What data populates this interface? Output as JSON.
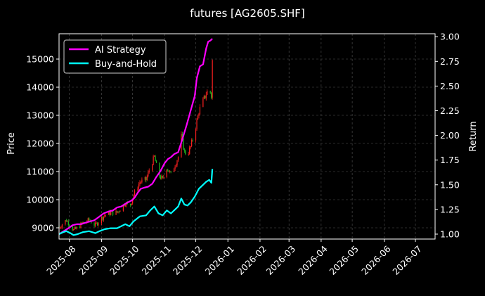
{
  "chart_data": {
    "type": "line",
    "title": "futures [AG2605.SHF]",
    "ylabel": "Price",
    "y2label": "Return",
    "x_range": [
      "2025-07-22",
      "2026-07-20"
    ],
    "ylim": [
      8600,
      15900
    ],
    "y2lim": [
      0.95,
      3.03
    ],
    "x_ticks": [
      "2025-08",
      "2025-09",
      "2025-10",
      "2025-11",
      "2025-12",
      "2026-01",
      "2026-02",
      "2026-03",
      "2026-04",
      "2026-05",
      "2026-06",
      "2026-07"
    ],
    "y_ticks": [
      9000,
      10000,
      11000,
      12000,
      13000,
      14000,
      15000
    ],
    "y2_ticks": [
      "1.00",
      "1.25",
      "1.50",
      "1.75",
      "2.00",
      "2.25",
      "2.50",
      "2.75",
      "3.00"
    ],
    "grid": true,
    "legend_position": "top-left",
    "background": "#000000",
    "colors": {
      "ai": "#ff00ff",
      "bh": "#00ffff",
      "up": "#ff2020",
      "down": "#20c020",
      "grid": "#555555",
      "text": "#ffffff"
    },
    "series": [
      {
        "name": "AI Strategy",
        "axis": "right",
        "x": [
          "2025-07-22",
          "2025-07-25",
          "2025-07-28",
          "2025-07-31",
          "2025-08-04",
          "2025-08-08",
          "2025-08-12",
          "2025-08-18",
          "2025-08-25",
          "2025-08-29",
          "2025-09-03",
          "2025-09-08",
          "2025-09-12",
          "2025-09-16",
          "2025-09-20",
          "2025-09-26",
          "2025-09-30",
          "2025-10-03",
          "2025-10-06",
          "2025-10-09",
          "2025-10-12",
          "2025-10-16",
          "2025-10-20",
          "2025-10-24",
          "2025-10-28",
          "2025-11-01",
          "2025-11-04",
          "2025-11-07",
          "2025-11-10",
          "2025-11-14",
          "2025-11-18",
          "2025-11-22",
          "2025-11-26",
          "2025-11-30",
          "2025-12-02",
          "2025-12-05",
          "2025-12-08",
          "2025-12-11",
          "2025-12-13",
          "2025-12-15",
          "2025-12-17"
        ],
        "values": [
          1.0,
          1.02,
          1.04,
          1.06,
          1.09,
          1.1,
          1.1,
          1.12,
          1.14,
          1.17,
          1.21,
          1.23,
          1.24,
          1.27,
          1.28,
          1.32,
          1.34,
          1.37,
          1.42,
          1.46,
          1.47,
          1.48,
          1.51,
          1.58,
          1.64,
          1.72,
          1.76,
          1.78,
          1.81,
          1.83,
          1.96,
          2.1,
          2.25,
          2.4,
          2.58,
          2.7,
          2.72,
          2.88,
          2.95,
          2.96,
          2.98
        ]
      },
      {
        "name": "Buy-and-Hold",
        "axis": "right",
        "x": [
          "2025-07-22",
          "2025-07-26",
          "2025-07-29",
          "2025-08-02",
          "2025-08-05",
          "2025-08-09",
          "2025-08-14",
          "2025-08-20",
          "2025-08-26",
          "2025-08-30",
          "2025-09-04",
          "2025-09-10",
          "2025-09-16",
          "2025-09-20",
          "2025-09-24",
          "2025-09-28",
          "2025-10-02",
          "2025-10-08",
          "2025-10-14",
          "2025-10-18",
          "2025-10-22",
          "2025-10-26",
          "2025-10-30",
          "2025-11-03",
          "2025-11-07",
          "2025-11-11",
          "2025-11-14",
          "2025-11-17",
          "2025-11-20",
          "2025-11-23",
          "2025-11-26",
          "2025-11-30",
          "2025-12-04",
          "2025-12-08",
          "2025-12-11",
          "2025-12-14",
          "2025-12-16",
          "2025-12-17"
        ],
        "values": [
          1.0,
          1.02,
          1.03,
          1.01,
          0.99,
          1.0,
          1.02,
          1.03,
          1.01,
          1.03,
          1.05,
          1.06,
          1.06,
          1.08,
          1.1,
          1.08,
          1.13,
          1.18,
          1.19,
          1.24,
          1.28,
          1.21,
          1.19,
          1.24,
          1.21,
          1.25,
          1.28,
          1.36,
          1.3,
          1.29,
          1.32,
          1.38,
          1.46,
          1.5,
          1.53,
          1.55,
          1.52,
          1.66
        ]
      }
    ]
  },
  "legend": {
    "items": [
      {
        "label": "AI Strategy"
      },
      {
        "label": "Buy-and-Hold"
      }
    ]
  }
}
